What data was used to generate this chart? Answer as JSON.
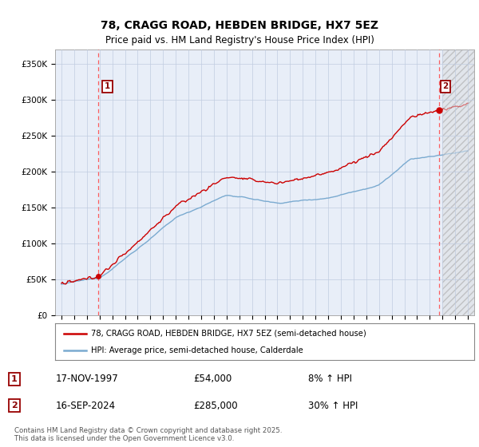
{
  "title": "78, CRAGG ROAD, HEBDEN BRIDGE, HX7 5EZ",
  "subtitle": "Price paid vs. HM Land Registry's House Price Index (HPI)",
  "sale1_date": "17-NOV-1997",
  "sale1_price": 54000,
  "sale1_pct": "8% ↑ HPI",
  "sale1_year": 1997.88,
  "sale2_date": "16-SEP-2024",
  "sale2_price": 285000,
  "sale2_pct": "30% ↑ HPI",
  "sale2_year": 2024.71,
  "legend_line1": "78, CRAGG ROAD, HEBDEN BRIDGE, HX7 5EZ (semi-detached house)",
  "legend_line2": "HPI: Average price, semi-detached house, Calderdale",
  "footnote": "Contains HM Land Registry data © Crown copyright and database right 2025.\nThis data is licensed under the Open Government Licence v3.0.",
  "xlim": [
    1994.5,
    2027.5
  ],
  "ylim": [
    0,
    370000
  ],
  "yticks": [
    0,
    50000,
    100000,
    150000,
    200000,
    250000,
    300000,
    350000
  ],
  "ytick_labels": [
    "£0",
    "£50K",
    "£100K",
    "£150K",
    "£200K",
    "£250K",
    "£300K",
    "£350K"
  ],
  "background_color": "#ffffff",
  "plot_bg_color": "#e8eef8",
  "grid_color": "#c0cce0",
  "red_line_color": "#cc0000",
  "blue_line_color": "#7aaad0",
  "hatch_start": 2025.0,
  "xtick_start": 1995,
  "xtick_end": 2027
}
